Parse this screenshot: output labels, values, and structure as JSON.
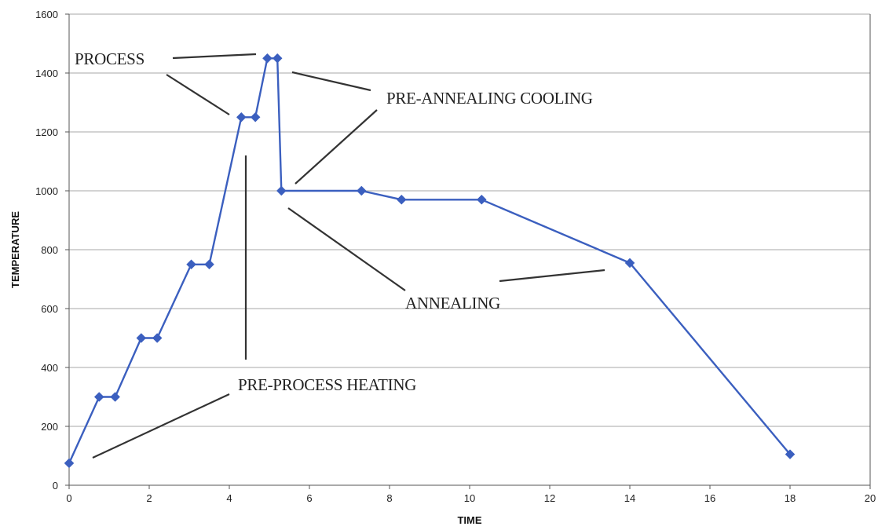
{
  "chart_data": {
    "type": "line",
    "title": "",
    "xlabel": "TIME",
    "ylabel": "TEMPERATURE",
    "xlim": [
      0,
      20
    ],
    "ylim": [
      0,
      1600
    ],
    "xticks": [
      "0",
      "2",
      "4",
      "6",
      "8",
      "10",
      "12",
      "14",
      "16",
      "18",
      "20"
    ],
    "yticks": [
      "0",
      "200",
      "400",
      "600",
      "800",
      "1000",
      "1200",
      "1400",
      "1600"
    ],
    "grid": "horizontal",
    "legend": "none",
    "series": [
      {
        "color": "#3b5fbf",
        "marker": "diamond",
        "points": [
          {
            "x": 0,
            "y": 75
          },
          {
            "x": 0.75,
            "y": 300
          },
          {
            "x": 1.15,
            "y": 300
          },
          {
            "x": 1.8,
            "y": 500
          },
          {
            "x": 2.2,
            "y": 500
          },
          {
            "x": 3.05,
            "y": 750
          },
          {
            "x": 3.5,
            "y": 750
          },
          {
            "x": 4.3,
            "y": 1250
          },
          {
            "x": 4.65,
            "y": 1250
          },
          {
            "x": 4.95,
            "y": 1450
          },
          {
            "x": 5.2,
            "y": 1450
          },
          {
            "x": 5.3,
            "y": 1000
          },
          {
            "x": 7.3,
            "y": 1000
          },
          {
            "x": 8.3,
            "y": 970
          },
          {
            "x": 10.3,
            "y": 970
          },
          {
            "x": 14,
            "y": 755
          },
          {
            "x": 18,
            "y": 105
          }
        ]
      }
    ],
    "annotations": [
      {
        "text": "PROCESS"
      },
      {
        "text": "PRE-ANNEALING COOLING"
      },
      {
        "text": "ANNEALING"
      },
      {
        "text": "PRE-PROCESS HEATING"
      }
    ]
  }
}
